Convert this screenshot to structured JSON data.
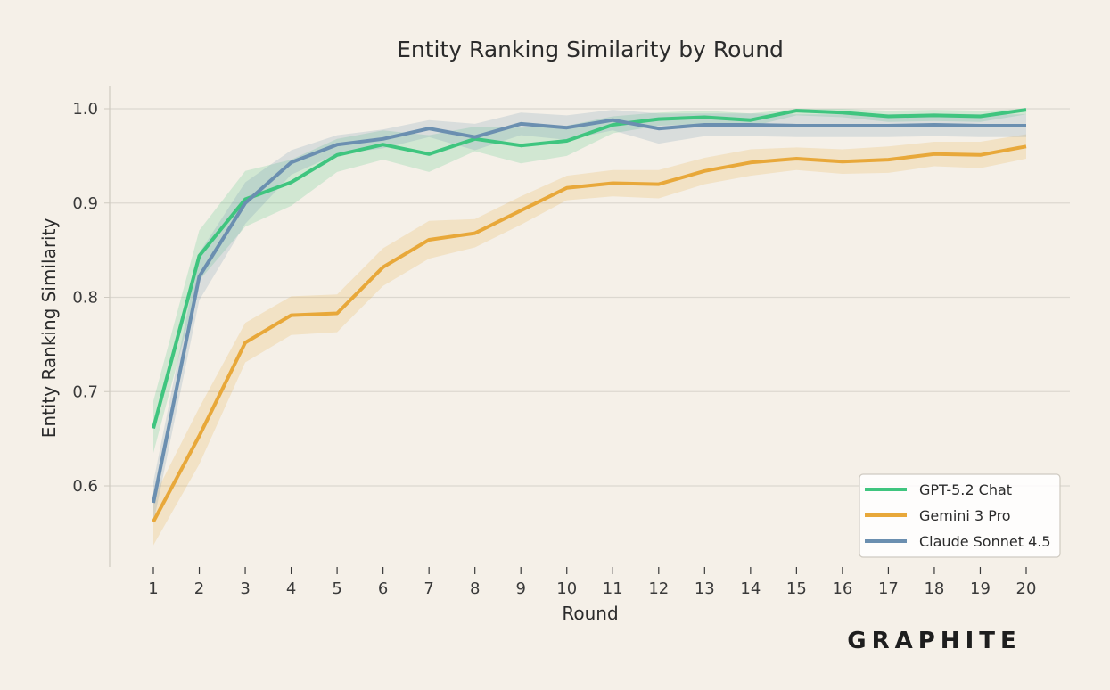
{
  "chart_data": {
    "type": "line",
    "title": "Entity Ranking Similarity by Round",
    "xlabel": "Round",
    "ylabel": "Entity Ranking Similarity",
    "x": [
      1,
      2,
      3,
      4,
      5,
      6,
      7,
      8,
      9,
      10,
      11,
      12,
      13,
      14,
      15,
      16,
      17,
      18,
      19,
      20
    ],
    "xlim": [
      0,
      21
    ],
    "ylim": [
      0.515,
      1.025
    ],
    "yticks": [
      0.6,
      0.7,
      0.8,
      0.9,
      1.0
    ],
    "ytick_labels": [
      "0.6",
      "0.7",
      "0.8",
      "0.9",
      "1.0"
    ],
    "grid": "horizontal",
    "legend_position": "bottom-right",
    "series": [
      {
        "name": "GPT-5.2 Chat",
        "color": "#3fc57f",
        "values": [
          0.661,
          0.844,
          0.904,
          0.922,
          0.951,
          0.962,
          0.952,
          0.968,
          0.961,
          0.966,
          0.983,
          0.989,
          0.991,
          0.988,
          0.998,
          0.996,
          0.992,
          0.993,
          0.992,
          0.999
        ],
        "lower": [
          0.635,
          0.818,
          0.875,
          0.897,
          0.933,
          0.946,
          0.933,
          0.955,
          0.942,
          0.95,
          0.974,
          0.982,
          0.984,
          0.981,
          0.993,
          0.991,
          0.986,
          0.987,
          0.986,
          0.994
        ],
        "upper": [
          0.69,
          0.871,
          0.934,
          0.946,
          0.968,
          0.977,
          0.972,
          0.981,
          0.98,
          0.982,
          0.992,
          0.996,
          0.998,
          0.995,
          1.0,
          1.0,
          0.998,
          0.999,
          0.998,
          1.0
        ]
      },
      {
        "name": "Gemini 3 Pro",
        "color": "#e8a83a",
        "values": [
          0.562,
          0.653,
          0.752,
          0.781,
          0.783,
          0.832,
          0.861,
          0.868,
          0.892,
          0.916,
          0.921,
          0.92,
          0.934,
          0.943,
          0.947,
          0.944,
          0.946,
          0.952,
          0.951,
          0.96
        ],
        "lower": [
          0.537,
          0.623,
          0.731,
          0.76,
          0.763,
          0.812,
          0.841,
          0.853,
          0.877,
          0.903,
          0.907,
          0.905,
          0.92,
          0.929,
          0.935,
          0.931,
          0.932,
          0.939,
          0.937,
          0.947
        ],
        "upper": [
          0.587,
          0.683,
          0.773,
          0.801,
          0.803,
          0.852,
          0.881,
          0.883,
          0.907,
          0.929,
          0.935,
          0.935,
          0.948,
          0.957,
          0.959,
          0.957,
          0.96,
          0.965,
          0.965,
          0.973
        ]
      },
      {
        "name": "Claude Sonnet 4.5",
        "color": "#6b8fb0",
        "values": [
          0.582,
          0.822,
          0.9,
          0.943,
          0.962,
          0.968,
          0.979,
          0.97,
          0.984,
          0.98,
          0.988,
          0.979,
          0.983,
          0.983,
          0.982,
          0.982,
          0.982,
          0.983,
          0.982,
          0.982
        ],
        "lower": [
          0.56,
          0.797,
          0.878,
          0.93,
          0.952,
          0.958,
          0.97,
          0.956,
          0.972,
          0.967,
          0.977,
          0.963,
          0.971,
          0.971,
          0.97,
          0.97,
          0.97,
          0.971,
          0.97,
          0.97
        ],
        "upper": [
          0.604,
          0.847,
          0.922,
          0.956,
          0.972,
          0.978,
          0.988,
          0.984,
          0.996,
          0.993,
          0.999,
          0.995,
          0.995,
          0.995,
          0.994,
          0.994,
          0.994,
          0.995,
          0.994,
          0.994
        ]
      }
    ]
  },
  "colors": {
    "background": "#f5f0e8",
    "grid": "#dcd8d0",
    "axis": "#cfcac1",
    "legend_border": "#cfcac1",
    "legend_fill": "#ffffff"
  },
  "logo": "GRAPHITE"
}
